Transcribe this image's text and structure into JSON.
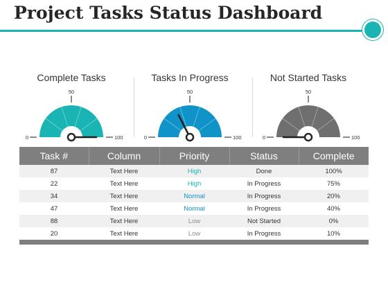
{
  "page": {
    "title": "Project Tasks Status Dashboard"
  },
  "gauges": [
    {
      "title": "Complete Tasks",
      "min_label": "0",
      "mid_label": "50",
      "max_label": "100",
      "value": 100,
      "color": "#1bb4b4"
    },
    {
      "title": "Tasks In Progress",
      "min_label": "0",
      "mid_label": "50",
      "max_label": "100",
      "value": 35,
      "color": "#0f93c9"
    },
    {
      "title": "Not Started Tasks",
      "min_label": "0",
      "mid_label": "50",
      "max_label": "100",
      "value": 0,
      "color": "#6f6f6f"
    }
  ],
  "table": {
    "headers": [
      "Task #",
      "Column",
      "Priority",
      "Status",
      "Complete"
    ],
    "rows": [
      [
        "87",
        "Text Here",
        "High",
        "Done",
        "100%"
      ],
      [
        "22",
        "Text Here",
        "High",
        "In Progress",
        "75%"
      ],
      [
        "34",
        "Text Here",
        "Normal",
        "In Progress",
        "20%"
      ],
      [
        "47",
        "Text Here",
        "Normal",
        "In Progress",
        "40%"
      ],
      [
        "88",
        "Text Here",
        "Low",
        "Not Started",
        "0%"
      ],
      [
        "20",
        "Text Here",
        "Low",
        "In Progress",
        "10%"
      ]
    ]
  },
  "colors": {
    "accent": "#1bb4b4",
    "header": "#7f7f7f",
    "priority_high": "#1bb4b4",
    "priority_normal": "#0f93c9",
    "priority_low": "#8c8c8c"
  }
}
